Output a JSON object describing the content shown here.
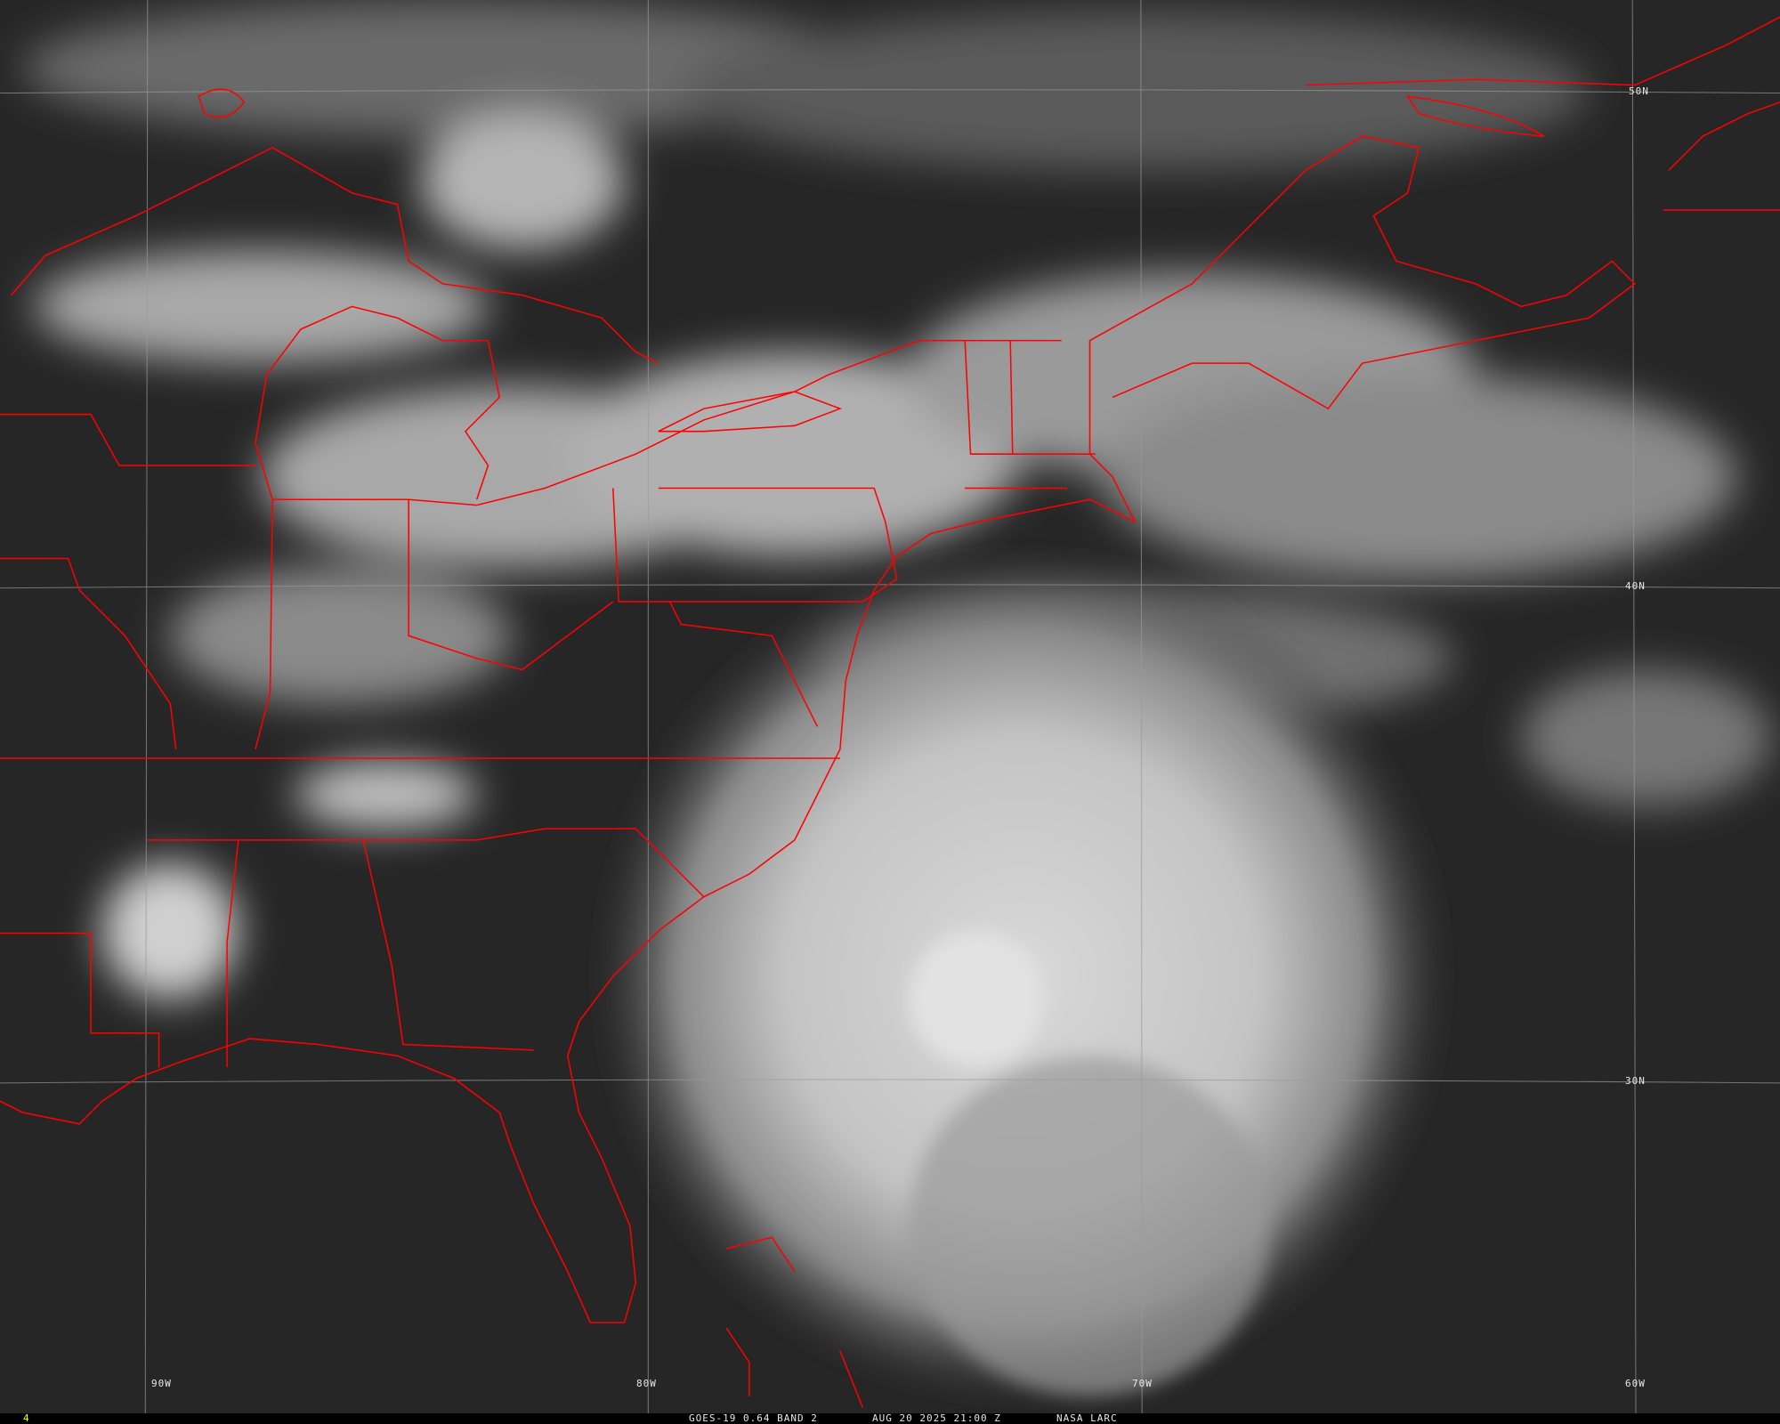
{
  "grid_labels": {
    "lon": [
      "90W",
      "80W",
      "70W",
      "60W"
    ],
    "lat": [
      "50N",
      "40N",
      "30N"
    ]
  },
  "footer": {
    "frame": "4",
    "satellite": "GOES-19 0.64 BAND 2",
    "datetime": "AUG 20 2025 21:00 Z",
    "source": "NASA LARC"
  },
  "colors": {
    "boundaries": "#ff0000",
    "grid": "#9a9a9a",
    "frame_number": "#ffff00",
    "background": "#262626"
  }
}
